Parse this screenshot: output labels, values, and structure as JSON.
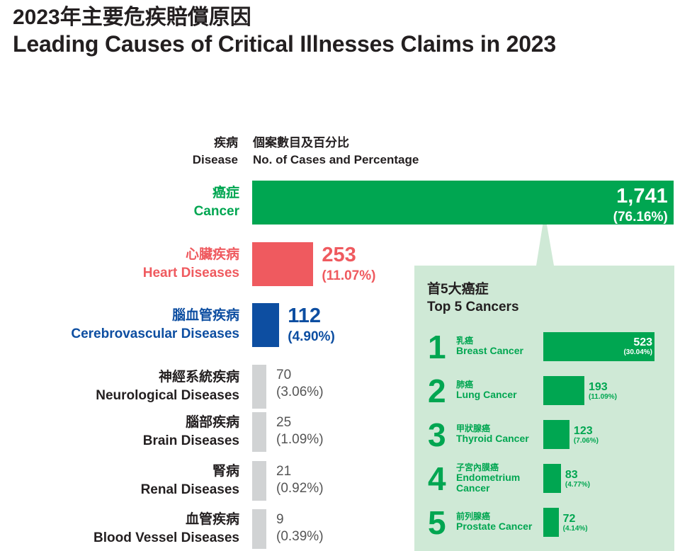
{
  "header": {
    "title_zh": "2023年主要危疾賠償原因",
    "title_en": "Leading Causes of Critical Illnesses Claims in 2023"
  },
  "columns": {
    "disease_zh": "疾病",
    "disease_en": "Disease",
    "cases_zh": "個案數目及百分比",
    "cases_en": "No. of Cases and Percentage"
  },
  "panel": {
    "title_zh": "首5大癌症",
    "title_en": "Top 5 Cancers"
  },
  "colors": {
    "cancer": "#00a651",
    "heart": "#ef5a5f",
    "cerebro": "#0d4ea1",
    "other": "#d1d3d4",
    "panel_bg": "#cfe9d6"
  },
  "chart_data": [
    {
      "type": "bar",
      "orientation": "horizontal",
      "title": "Leading Causes of Critical Illnesses Claims in 2023",
      "xlabel": "No. of Cases and Percentage",
      "ylabel": "Disease",
      "categories": [
        {
          "zh": "癌症",
          "en": "Cancer"
        },
        {
          "zh": "心臟疾病",
          "en": "Heart Diseases"
        },
        {
          "zh": "腦血管疾病",
          "en": "Cerebrovascular Diseases"
        },
        {
          "zh": "神經系統疾病",
          "en": "Neurological Diseases"
        },
        {
          "zh": "腦部疾病",
          "en": "Brain Diseases"
        },
        {
          "zh": "腎病",
          "en": "Renal Diseases"
        },
        {
          "zh": "血管疾病",
          "en": "Blood Vessel Diseases"
        }
      ],
      "values": [
        1741,
        253,
        112,
        70,
        25,
        21,
        9
      ],
      "value_labels": [
        "1,741",
        "253",
        "112",
        "70",
        "25",
        "21",
        "9"
      ],
      "percent_labels": [
        "(76.16%)",
        "(11.07%)",
        "(4.90%)",
        "(3.06%)",
        "(1.09%)",
        "(0.92%)",
        "(0.39%)"
      ],
      "grid": false,
      "legend": "none"
    },
    {
      "type": "bar",
      "orientation": "horizontal",
      "title": "Top 5 Cancers",
      "ranks": [
        "1",
        "2",
        "3",
        "4",
        "5"
      ],
      "categories": [
        {
          "zh": "乳癌",
          "en": "Breast Cancer"
        },
        {
          "zh": "肺癌",
          "en": "Lung Cancer"
        },
        {
          "zh": "甲狀腺癌",
          "en": "Thyroid Cancer"
        },
        {
          "zh": "子宮內膜癌",
          "en": "Endometrium Cancer"
        },
        {
          "zh": "前列腺癌",
          "en": "Prostate Cancer"
        }
      ],
      "values": [
        523,
        193,
        123,
        83,
        72
      ],
      "value_labels": [
        "523",
        "193",
        "123",
        "83",
        "72"
      ],
      "percent_labels": [
        "(30.04%)",
        "(11.09%)",
        "(7.06%)",
        "(4.77%)",
        "(4.14%)"
      ],
      "grid": false,
      "legend": "none"
    }
  ]
}
